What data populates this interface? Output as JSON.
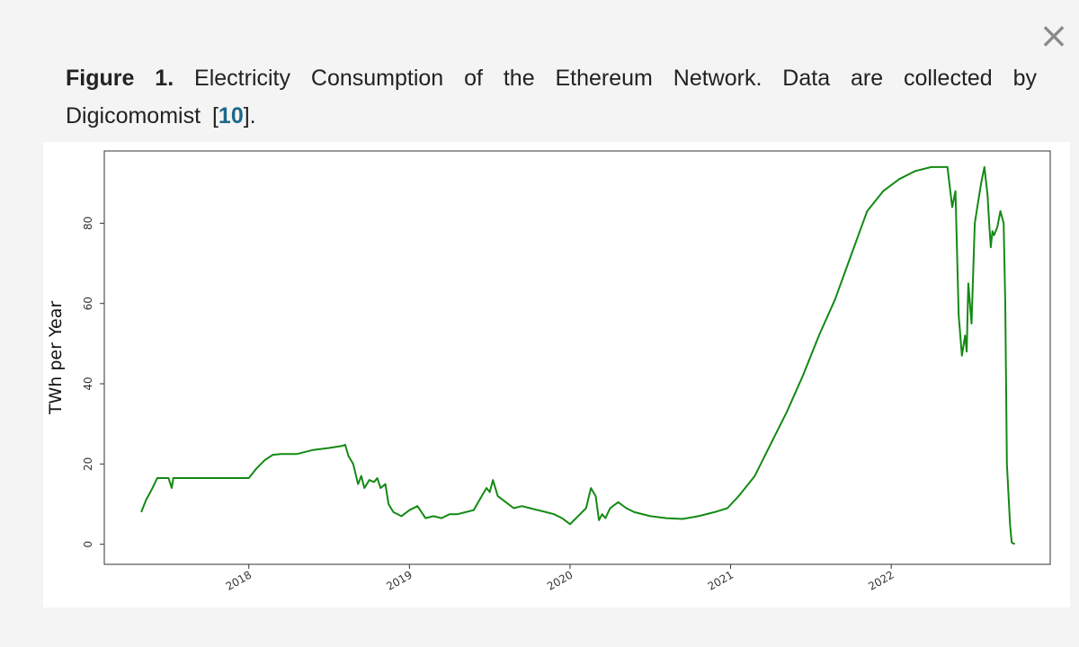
{
  "close_label": "×",
  "caption": {
    "label": "Figure 1.",
    "text": "Electricity Consumption of the Ethereum Network. Data are collected by Digicomomist [",
    "ref": "10",
    "tail": "]."
  },
  "chart_data": {
    "type": "line",
    "xlabel": "",
    "ylabel": "TWh per Year",
    "x_tick_labels": [
      "2018",
      "2019",
      "2020",
      "2021",
      "2022"
    ],
    "y_ticks": [
      0,
      20,
      40,
      60,
      80
    ],
    "xlim": [
      2017.1,
      2022.99
    ],
    "ylim": [
      -5,
      98
    ],
    "grid": false,
    "line_color": "#138a13",
    "series": [
      {
        "x": [
          2017.33,
          2017.36,
          2017.4,
          2017.43,
          2017.47,
          2017.5,
          2017.52,
          2017.53,
          2017.55,
          2017.6,
          2017.7,
          2017.8,
          2017.9,
          2018.0,
          2018.05,
          2018.1,
          2018.15,
          2018.2,
          2018.3,
          2018.4,
          2018.5,
          2018.58,
          2018.6,
          2018.62,
          2018.65,
          2018.68,
          2018.7,
          2018.72,
          2018.75,
          2018.78,
          2018.8,
          2018.82,
          2018.85,
          2018.87,
          2018.9,
          2018.95,
          2019.0,
          2019.05,
          2019.1,
          2019.15,
          2019.2,
          2019.25,
          2019.3,
          2019.35,
          2019.4,
          2019.45,
          2019.48,
          2019.5,
          2019.52,
          2019.55,
          2019.6,
          2019.65,
          2019.7,
          2019.75,
          2019.8,
          2019.85,
          2019.9,
          2019.95,
          2020.0,
          2020.05,
          2020.1,
          2020.13,
          2020.16,
          2020.18,
          2020.2,
          2020.22,
          2020.25,
          2020.3,
          2020.35,
          2020.4,
          2020.5,
          2020.6,
          2020.7,
          2020.8,
          2020.9,
          2020.98,
          2021.05,
          2021.15,
          2021.25,
          2021.35,
          2021.45,
          2021.55,
          2021.65,
          2021.75,
          2021.85,
          2021.95,
          2022.05,
          2022.15,
          2022.25,
          2022.3,
          2022.35,
          2022.38,
          2022.4,
          2022.42,
          2022.44,
          2022.46,
          2022.47,
          2022.48,
          2022.5,
          2022.52,
          2022.54,
          2022.56,
          2022.58,
          2022.6,
          2022.61,
          2022.62,
          2022.63,
          2022.64,
          2022.66,
          2022.68,
          2022.7,
          2022.71,
          2022.72,
          2022.74,
          2022.75,
          2022.76,
          2022.77
        ],
        "y": [
          8,
          11,
          14,
          16.5,
          16.5,
          16.5,
          14,
          16.5,
          16.5,
          16.5,
          16.5,
          16.5,
          16.5,
          16.5,
          19,
          21,
          22.3,
          22.5,
          22.5,
          23.5,
          24,
          24.5,
          24.8,
          22,
          20,
          15,
          17,
          14,
          16,
          15.5,
          16.5,
          14,
          15,
          10,
          8,
          7,
          8.5,
          9.5,
          6.5,
          7,
          6.5,
          7.5,
          7.5,
          8,
          8.5,
          12,
          14,
          13,
          16,
          12,
          10.5,
          9,
          9.5,
          9,
          8.5,
          8,
          7.5,
          6.5,
          5,
          7,
          9,
          14,
          12,
          6,
          7.5,
          6.5,
          9,
          10.5,
          9,
          8,
          7,
          6.5,
          6.3,
          7,
          8,
          9,
          12,
          17,
          25,
          33,
          42,
          52,
          61,
          72,
          83,
          88,
          91,
          93,
          94,
          94,
          94,
          84,
          88,
          57,
          47,
          52,
          48,
          65,
          55,
          80,
          85,
          90,
          94,
          87,
          80,
          74,
          78,
          77,
          79,
          83,
          80,
          60,
          20,
          5,
          0.5,
          0.2,
          0.1
        ]
      }
    ]
  }
}
